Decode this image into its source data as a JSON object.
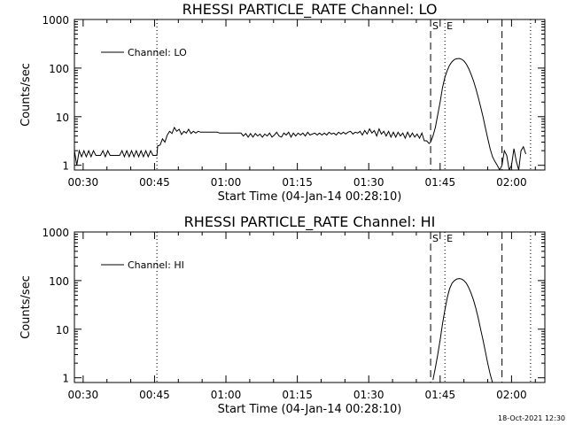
{
  "chart_data": [
    {
      "type": "line",
      "title": "RHESSI PARTICLE_RATE Channel: LO",
      "xlabel": "Start Time (04-Jan-14 00:28:10)",
      "ylabel": "Counts/sec",
      "xlim": [
        "00:28:10",
        "02:07:00"
      ],
      "ylim": [
        0.8,
        1000
      ],
      "yscale": "log",
      "x_ticks": [
        "00:30",
        "00:45",
        "01:00",
        "01:15",
        "01:30",
        "01:45",
        "02:00"
      ],
      "y_ticks": [
        "1",
        "10",
        "100",
        "1000"
      ],
      "legend": {
        "label": "Channel: LO",
        "position": "top-left"
      },
      "markers": [
        {
          "label": "S",
          "time": "01:43:00",
          "style": "dashed"
        },
        {
          "label": "E",
          "time": "01:46:00",
          "style": "dotted"
        }
      ],
      "vlines": [
        {
          "time": "00:45:30",
          "style": "dotted"
        },
        {
          "time": "01:43:00",
          "style": "dashed"
        },
        {
          "time": "01:46:00",
          "style": "dotted"
        },
        {
          "time": "01:58:00",
          "style": "dashed"
        },
        {
          "time": "02:04:00",
          "style": "dotted"
        }
      ],
      "series": [
        {
          "name": "Channel: LO",
          "points": [
            [
              "00:28:10",
              2.0
            ],
            [
              "00:28:40",
              1.0
            ],
            [
              "00:29:10",
              2.0
            ],
            [
              "00:29:40",
              1.5
            ],
            [
              "00:30:10",
              2.0
            ],
            [
              "00:30:40",
              1.5
            ],
            [
              "00:31:10",
              2.0
            ],
            [
              "00:31:40",
              1.5
            ],
            [
              "00:32:10",
              2.0
            ],
            [
              "00:32:40",
              1.6
            ],
            [
              "00:33:10",
              1.6
            ],
            [
              "00:33:40",
              1.6
            ],
            [
              "00:34:10",
              2.0
            ],
            [
              "00:34:40",
              1.5
            ],
            [
              "00:35:10",
              2.0
            ],
            [
              "00:35:40",
              1.6
            ],
            [
              "00:36:10",
              1.6
            ],
            [
              "00:36:40",
              1.6
            ],
            [
              "00:37:10",
              1.6
            ],
            [
              "00:37:40",
              1.6
            ],
            [
              "00:38:10",
              2.0
            ],
            [
              "00:38:40",
              1.5
            ],
            [
              "00:39:10",
              2.0
            ],
            [
              "00:39:40",
              1.5
            ],
            [
              "00:40:10",
              2.0
            ],
            [
              "00:40:40",
              1.5
            ],
            [
              "00:41:10",
              2.0
            ],
            [
              "00:41:40",
              1.5
            ],
            [
              "00:42:10",
              2.0
            ],
            [
              "00:42:40",
              1.5
            ],
            [
              "00:43:10",
              2.0
            ],
            [
              "00:43:40",
              1.5
            ],
            [
              "00:44:10",
              2.0
            ],
            [
              "00:44:40",
              1.6
            ],
            [
              "00:45:30",
              1.6
            ],
            [
              "00:45:40",
              2.5
            ],
            [
              "00:46:10",
              2.6
            ],
            [
              "00:46:40",
              3.5
            ],
            [
              "00:47:10",
              3.0
            ],
            [
              "00:47:40",
              4.2
            ],
            [
              "00:48:10",
              5.0
            ],
            [
              "00:48:40",
              4.5
            ],
            [
              "00:49:10",
              6.0
            ],
            [
              "00:49:40",
              5.0
            ],
            [
              "00:50:10",
              5.5
            ],
            [
              "00:50:40",
              4.3
            ],
            [
              "00:51:10",
              5.0
            ],
            [
              "00:51:40",
              4.6
            ],
            [
              "00:52:10",
              5.5
            ],
            [
              "00:52:40",
              4.5
            ],
            [
              "00:53:10",
              5.0
            ],
            [
              "00:53:40",
              4.6
            ],
            [
              "00:54:10",
              5.0
            ],
            [
              "00:54:40",
              4.8
            ],
            [
              "00:55:10",
              4.8
            ],
            [
              "00:55:40",
              4.8
            ],
            [
              "00:56:10",
              4.8
            ],
            [
              "00:56:40",
              4.8
            ],
            [
              "00:57:10",
              4.8
            ],
            [
              "00:57:40",
              4.8
            ],
            [
              "00:58:10",
              4.8
            ],
            [
              "00:58:40",
              4.6
            ],
            [
              "00:59:10",
              4.6
            ],
            [
              "00:59:40",
              4.6
            ],
            [
              "01:00:10",
              4.6
            ],
            [
              "01:00:40",
              4.6
            ],
            [
              "01:01:10",
              4.6
            ],
            [
              "01:01:40",
              4.6
            ],
            [
              "01:02:10",
              4.6
            ],
            [
              "01:02:40",
              4.6
            ],
            [
              "01:03:10",
              4.6
            ],
            [
              "01:03:40",
              4.0
            ],
            [
              "01:04:10",
              4.5
            ],
            [
              "01:04:40",
              3.8
            ],
            [
              "01:05:10",
              4.5
            ],
            [
              "01:05:40",
              3.8
            ],
            [
              "01:06:10",
              4.5
            ],
            [
              "01:06:40",
              4.0
            ],
            [
              "01:07:10",
              4.4
            ],
            [
              "01:07:40",
              3.8
            ],
            [
              "01:08:10",
              4.4
            ],
            [
              "01:08:40",
              4.0
            ],
            [
              "01:09:10",
              4.6
            ],
            [
              "01:09:40",
              3.8
            ],
            [
              "01:10:10",
              4.2
            ],
            [
              "01:10:40",
              4.8
            ],
            [
              "01:11:10",
              4.0
            ],
            [
              "01:11:40",
              3.8
            ],
            [
              "01:12:10",
              4.6
            ],
            [
              "01:12:40",
              4.2
            ],
            [
              "01:13:10",
              4.8
            ],
            [
              "01:13:40",
              3.8
            ],
            [
              "01:14:10",
              4.6
            ],
            [
              "01:14:40",
              4.0
            ],
            [
              "01:15:10",
              4.6
            ],
            [
              "01:15:40",
              4.2
            ],
            [
              "01:16:10",
              4.6
            ],
            [
              "01:16:40",
              4.0
            ],
            [
              "01:17:10",
              4.8
            ],
            [
              "01:17:40",
              4.2
            ],
            [
              "01:18:10",
              4.4
            ],
            [
              "01:18:40",
              4.6
            ],
            [
              "01:19:10",
              4.2
            ],
            [
              "01:19:40",
              4.6
            ],
            [
              "01:20:10",
              4.2
            ],
            [
              "01:20:40",
              4.6
            ],
            [
              "01:21:10",
              4.2
            ],
            [
              "01:21:40",
              4.8
            ],
            [
              "01:22:10",
              4.4
            ],
            [
              "01:22:40",
              4.6
            ],
            [
              "01:23:10",
              4.2
            ],
            [
              "01:23:40",
              4.8
            ],
            [
              "01:24:10",
              4.4
            ],
            [
              "01:24:40",
              4.8
            ],
            [
              "01:25:10",
              4.4
            ],
            [
              "01:25:40",
              4.8
            ],
            [
              "01:26:10",
              5.0
            ],
            [
              "01:26:40",
              4.4
            ],
            [
              "01:27:10",
              4.8
            ],
            [
              "01:27:40",
              4.6
            ],
            [
              "01:28:10",
              5.0
            ],
            [
              "01:28:40",
              4.2
            ],
            [
              "01:29:10",
              5.2
            ],
            [
              "01:29:40",
              4.4
            ],
            [
              "01:30:10",
              5.6
            ],
            [
              "01:30:40",
              4.6
            ],
            [
              "01:31:10",
              5.2
            ],
            [
              "01:31:40",
              4.0
            ],
            [
              "01:32:10",
              5.6
            ],
            [
              "01:32:40",
              4.4
            ],
            [
              "01:33:10",
              5.0
            ],
            [
              "01:33:40",
              4.0
            ],
            [
              "01:34:10",
              5.0
            ],
            [
              "01:34:40",
              3.8
            ],
            [
              "01:35:10",
              4.8
            ],
            [
              "01:35:40",
              3.8
            ],
            [
              "01:36:10",
              4.8
            ],
            [
              "01:36:40",
              4.0
            ],
            [
              "01:37:10",
              4.6
            ],
            [
              "01:37:40",
              3.6
            ],
            [
              "01:38:10",
              4.8
            ],
            [
              "01:38:40",
              3.8
            ],
            [
              "01:39:10",
              4.6
            ],
            [
              "01:39:40",
              3.8
            ],
            [
              "01:40:10",
              4.4
            ],
            [
              "01:40:40",
              3.6
            ],
            [
              "01:41:10",
              4.6
            ],
            [
              "01:41:40",
              3.2
            ],
            [
              "01:42:10",
              3.2
            ],
            [
              "01:42:40",
              2.8
            ],
            [
              "01:43:00",
              3.0
            ],
            [
              "01:43:30",
              4.0
            ],
            [
              "01:44:00",
              6.0
            ],
            [
              "01:44:30",
              11.0
            ],
            [
              "01:45:00",
              20.0
            ],
            [
              "01:45:30",
              40.0
            ],
            [
              "01:46:00",
              65.0
            ],
            [
              "01:46:30",
              90.0
            ],
            [
              "01:47:00",
              115.0
            ],
            [
              "01:47:30",
              135.0
            ],
            [
              "01:48:00",
              150.0
            ],
            [
              "01:48:30",
              155.0
            ],
            [
              "01:49:00",
              158.0
            ],
            [
              "01:49:30",
              152.0
            ],
            [
              "01:50:00",
              140.0
            ],
            [
              "01:50:30",
              120.0
            ],
            [
              "01:51:00",
              98.0
            ],
            [
              "01:51:30",
              75.0
            ],
            [
              "01:52:00",
              55.0
            ],
            [
              "01:52:30",
              38.0
            ],
            [
              "01:53:00",
              25.0
            ],
            [
              "01:53:30",
              16.0
            ],
            [
              "01:54:00",
              10.0
            ],
            [
              "01:54:30",
              6.0
            ],
            [
              "01:55:00",
              3.6
            ],
            [
              "01:55:30",
              2.2
            ],
            [
              "01:56:00",
              1.5
            ],
            [
              "01:56:30",
              1.2
            ],
            [
              "01:57:00",
              1.0
            ],
            [
              "01:57:30",
              0.8
            ],
            [
              "01:58:00",
              1.0
            ],
            [
              "01:58:30",
              2.0
            ],
            [
              "01:59:00",
              1.6
            ],
            [
              "01:59:30",
              0.8
            ],
            [
              "02:00:00",
              1.0
            ],
            [
              "02:00:30",
              2.2
            ],
            [
              "02:01:00",
              1.2
            ],
            [
              "02:01:30",
              0.8
            ],
            [
              "02:02:00",
              2.0
            ],
            [
              "02:02:30",
              2.4
            ],
            [
              "02:03:00",
              1.7
            ]
          ]
        }
      ]
    },
    {
      "type": "line",
      "title": "RHESSI PARTICLE_RATE Channel: HI",
      "xlabel": "Start Time (04-Jan-14 00:28:10)",
      "ylabel": "Counts/sec",
      "xlim": [
        "00:28:10",
        "02:07:00"
      ],
      "ylim": [
        0.8,
        1000
      ],
      "yscale": "log",
      "x_ticks": [
        "00:30",
        "00:45",
        "01:00",
        "01:15",
        "01:30",
        "01:45",
        "02:00"
      ],
      "y_ticks": [
        "1",
        "10",
        "100",
        "1000"
      ],
      "legend": {
        "label": "Channel: HI",
        "position": "top-left"
      },
      "markers": [
        {
          "label": "S",
          "time": "01:43:00",
          "style": "dashed"
        },
        {
          "label": "E",
          "time": "01:46:00",
          "style": "dotted"
        }
      ],
      "vlines": [
        {
          "time": "00:45:30",
          "style": "dotted"
        },
        {
          "time": "01:43:00",
          "style": "dashed"
        },
        {
          "time": "01:46:00",
          "style": "dotted"
        },
        {
          "time": "01:58:00",
          "style": "dashed"
        },
        {
          "time": "02:04:00",
          "style": "dotted"
        }
      ],
      "series": [
        {
          "name": "Channel: HI",
          "points": [
            [
              "01:43:30",
              0.9
            ],
            [
              "01:44:00",
              1.6
            ],
            [
              "01:44:30",
              3.0
            ],
            [
              "01:45:00",
              6.0
            ],
            [
              "01:45:30",
              13.0
            ],
            [
              "01:46:00",
              25.0
            ],
            [
              "01:46:30",
              45.0
            ],
            [
              "01:47:00",
              68.0
            ],
            [
              "01:47:30",
              88.0
            ],
            [
              "01:48:00",
              100.0
            ],
            [
              "01:48:30",
              108.0
            ],
            [
              "01:49:00",
              110.0
            ],
            [
              "01:49:30",
              108.0
            ],
            [
              "01:50:00",
              100.0
            ],
            [
              "01:50:30",
              88.0
            ],
            [
              "01:51:00",
              72.0
            ],
            [
              "01:51:30",
              55.0
            ],
            [
              "01:52:00",
              40.0
            ],
            [
              "01:52:30",
              27.0
            ],
            [
              "01:53:00",
              17.0
            ],
            [
              "01:53:30",
              10.0
            ],
            [
              "01:54:00",
              6.0
            ],
            [
              "01:54:30",
              3.5
            ],
            [
              "01:55:00",
              2.0
            ],
            [
              "01:55:30",
              1.2
            ],
            [
              "01:56:00",
              0.8
            ]
          ]
        }
      ]
    }
  ],
  "footer": {
    "timestamp": "18-Oct-2021 12:30"
  }
}
